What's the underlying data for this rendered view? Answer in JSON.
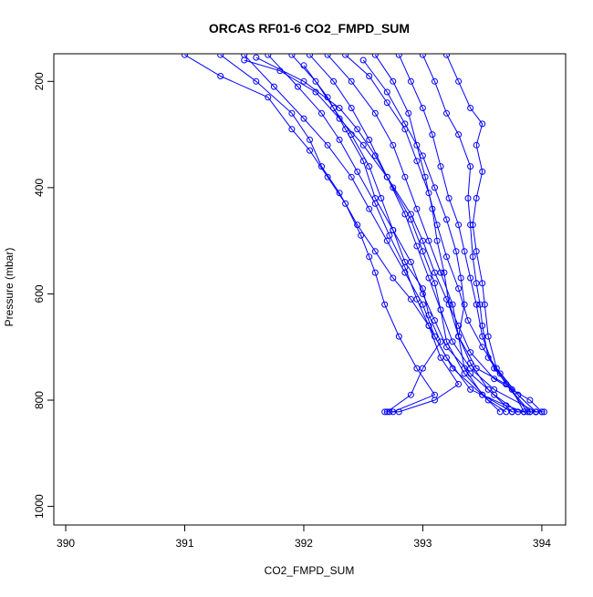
{
  "chart_data": {
    "type": "scatter",
    "title": "ORCAS RF01-6 CO2_FMPD_SUM",
    "xlabel": "CO2_FMPD_SUM",
    "ylabel": "Pressure (mbar)",
    "xlim": [
      389.9,
      394.2
    ],
    "ylim": [
      1035,
      148
    ],
    "y_reversed": true,
    "x_ticks": [
      "390",
      "391",
      "392",
      "393",
      "394"
    ],
    "y_ticks": [
      "200",
      "400",
      "600",
      "800",
      "1000"
    ],
    "grid": false,
    "legend": "none",
    "marker": "open-circle",
    "connected": true,
    "color": "#0000ff",
    "series": [
      {
        "values": [
          [
            391.0,
            150
          ],
          [
            391.3,
            190
          ],
          [
            391.7,
            230
          ],
          [
            391.9,
            290
          ],
          [
            392.05,
            330
          ],
          [
            392.2,
            380
          ],
          [
            392.35,
            430
          ],
          [
            392.48,
            490
          ],
          [
            392.55,
            530
          ],
          [
            392.6,
            560
          ],
          [
            392.68,
            620
          ],
          [
            392.8,
            680
          ],
          [
            392.95,
            740
          ],
          [
            393.1,
            790
          ],
          [
            392.75,
            822
          ],
          [
            392.68,
            822
          ]
        ]
      },
      {
        "values": [
          [
            391.3,
            150
          ],
          [
            391.6,
            200
          ],
          [
            391.9,
            260
          ],
          [
            392.05,
            310
          ],
          [
            392.15,
            360
          ],
          [
            392.3,
            410
          ],
          [
            392.45,
            470
          ],
          [
            392.6,
            520
          ],
          [
            392.75,
            570
          ],
          [
            392.9,
            610
          ],
          [
            393.05,
            660
          ],
          [
            393.2,
            720
          ],
          [
            393.4,
            780
          ],
          [
            393.7,
            810
          ],
          [
            393.85,
            822
          ],
          [
            393.95,
            822
          ]
        ]
      },
      {
        "values": [
          [
            391.5,
            150
          ],
          [
            391.75,
            210
          ],
          [
            392.0,
            270
          ],
          [
            392.2,
            320
          ],
          [
            392.4,
            380
          ],
          [
            392.55,
            440
          ],
          [
            392.7,
            500
          ],
          [
            392.85,
            560
          ],
          [
            393.0,
            620
          ],
          [
            393.1,
            680
          ],
          [
            393.25,
            740
          ],
          [
            393.5,
            790
          ],
          [
            393.75,
            822
          ],
          [
            394.0,
            822
          ]
        ]
      },
      {
        "values": [
          [
            391.7,
            150
          ],
          [
            391.95,
            210
          ],
          [
            392.15,
            260
          ],
          [
            392.3,
            310
          ],
          [
            392.45,
            370
          ],
          [
            392.6,
            430
          ],
          [
            392.72,
            490
          ],
          [
            392.85,
            550
          ],
          [
            392.95,
            610
          ],
          [
            393.05,
            660
          ],
          [
            393.15,
            720
          ],
          [
            393.3,
            770
          ],
          [
            393.1,
            800
          ],
          [
            392.8,
            822
          ],
          [
            392.72,
            822
          ]
        ]
      },
      {
        "values": [
          [
            391.9,
            150
          ],
          [
            392.1,
            200
          ],
          [
            392.25,
            250
          ],
          [
            392.4,
            300
          ],
          [
            392.55,
            360
          ],
          [
            392.65,
            420
          ],
          [
            392.75,
            480
          ],
          [
            392.9,
            540
          ],
          [
            393.0,
            600
          ],
          [
            393.1,
            650
          ],
          [
            393.2,
            700
          ],
          [
            393.4,
            750
          ],
          [
            393.6,
            790
          ],
          [
            393.8,
            822
          ],
          [
            393.9,
            822
          ]
        ]
      },
      {
        "values": [
          [
            392.05,
            150
          ],
          [
            392.25,
            200
          ],
          [
            392.4,
            250
          ],
          [
            392.55,
            310
          ],
          [
            392.7,
            380
          ],
          [
            392.85,
            450
          ],
          [
            392.95,
            510
          ],
          [
            393.05,
            570
          ],
          [
            393.15,
            630
          ],
          [
            393.25,
            690
          ],
          [
            393.4,
            740
          ],
          [
            393.6,
            780
          ],
          [
            393.95,
            822
          ],
          [
            394.02,
            822
          ]
        ]
      },
      {
        "values": [
          [
            392.2,
            150
          ],
          [
            392.4,
            200
          ],
          [
            392.6,
            260
          ],
          [
            392.75,
            320
          ],
          [
            392.85,
            380
          ],
          [
            392.95,
            440
          ],
          [
            393.05,
            500
          ],
          [
            393.15,
            560
          ],
          [
            393.25,
            620
          ],
          [
            393.3,
            680
          ],
          [
            393.45,
            740
          ],
          [
            393.7,
            770
          ],
          [
            393.88,
            822
          ]
        ]
      },
      {
        "values": [
          [
            392.35,
            150
          ],
          [
            392.55,
            190
          ],
          [
            392.7,
            240
          ],
          [
            392.85,
            290
          ],
          [
            392.95,
            350
          ],
          [
            393.05,
            410
          ],
          [
            393.12,
            470
          ],
          [
            393.2,
            530
          ],
          [
            393.3,
            590
          ],
          [
            393.38,
            650
          ],
          [
            393.5,
            700
          ],
          [
            393.65,
            750
          ],
          [
            393.8,
            790
          ],
          [
            393.95,
            822
          ]
        ]
      },
      {
        "values": [
          [
            392.6,
            150
          ],
          [
            392.75,
            200
          ],
          [
            392.88,
            260
          ],
          [
            392.95,
            320
          ],
          [
            393.02,
            380
          ],
          [
            393.08,
            440
          ],
          [
            393.12,
            500
          ],
          [
            393.18,
            560
          ],
          [
            393.22,
            620
          ],
          [
            393.3,
            680
          ],
          [
            393.4,
            730
          ],
          [
            393.55,
            780
          ],
          [
            393.75,
            822
          ]
        ]
      },
      {
        "values": [
          [
            392.8,
            150
          ],
          [
            392.9,
            200
          ],
          [
            393.0,
            250
          ],
          [
            393.08,
            300
          ],
          [
            393.15,
            360
          ],
          [
            393.22,
            420
          ],
          [
            393.3,
            470
          ],
          [
            393.35,
            520
          ],
          [
            393.4,
            570
          ],
          [
            393.45,
            620
          ],
          [
            393.5,
            680
          ],
          [
            393.6,
            740
          ],
          [
            393.75,
            780
          ],
          [
            393.85,
            822
          ]
        ]
      },
      {
        "values": [
          [
            393.0,
            150
          ],
          [
            393.1,
            200
          ],
          [
            393.2,
            260
          ],
          [
            393.3,
            300
          ],
          [
            393.4,
            360
          ],
          [
            393.38,
            420
          ],
          [
            393.4,
            470
          ],
          [
            393.42,
            530
          ],
          [
            393.45,
            580
          ],
          [
            393.48,
            620
          ],
          [
            393.5,
            660
          ],
          [
            393.55,
            720
          ],
          [
            393.7,
            770
          ],
          [
            393.9,
            822
          ]
        ]
      },
      {
        "values": [
          [
            393.2,
            150
          ],
          [
            393.3,
            200
          ],
          [
            393.4,
            250
          ],
          [
            393.5,
            280
          ],
          [
            393.45,
            320
          ],
          [
            393.5,
            370
          ],
          [
            393.45,
            420
          ],
          [
            393.42,
            470
          ],
          [
            393.45,
            520
          ],
          [
            393.5,
            580
          ],
          [
            393.52,
            620
          ],
          [
            393.55,
            680
          ],
          [
            393.62,
            740
          ],
          [
            393.8,
            790
          ],
          [
            393.95,
            822
          ]
        ]
      },
      {
        "values": [
          [
            391.5,
            160
          ],
          [
            391.8,
            180
          ],
          [
            392.1,
            220
          ],
          [
            392.3,
            270
          ],
          [
            392.5,
            320
          ],
          [
            392.7,
            380
          ],
          [
            392.9,
            450
          ],
          [
            393.0,
            500
          ],
          [
            393.1,
            560
          ],
          [
            393.2,
            610
          ],
          [
            393.3,
            660
          ],
          [
            393.4,
            710
          ],
          [
            393.6,
            760
          ],
          [
            393.9,
            800
          ],
          [
            394.0,
            822
          ]
        ]
      },
      {
        "values": [
          [
            392.0,
            170
          ],
          [
            392.2,
            230
          ],
          [
            392.35,
            290
          ],
          [
            392.5,
            350
          ],
          [
            392.6,
            420
          ],
          [
            392.75,
            480
          ],
          [
            392.85,
            540
          ],
          [
            393.0,
            590
          ],
          [
            393.05,
            640
          ],
          [
            393.15,
            690
          ],
          [
            393.0,
            740
          ],
          [
            392.9,
            790
          ],
          [
            392.7,
            822
          ]
        ]
      },
      {
        "values": [
          [
            391.6,
            155
          ],
          [
            392.0,
            200
          ],
          [
            392.3,
            250
          ],
          [
            392.45,
            290
          ],
          [
            392.6,
            340
          ],
          [
            392.75,
            400
          ],
          [
            392.9,
            460
          ],
          [
            393.0,
            520
          ],
          [
            393.1,
            580
          ],
          [
            393.15,
            630
          ],
          [
            393.2,
            690
          ],
          [
            393.35,
            750
          ],
          [
            393.55,
            800
          ],
          [
            393.7,
            822
          ]
        ]
      },
      {
        "values": [
          [
            392.5,
            160
          ],
          [
            392.7,
            220
          ],
          [
            392.85,
            280
          ],
          [
            393.0,
            340
          ],
          [
            393.1,
            400
          ],
          [
            393.2,
            460
          ],
          [
            393.28,
            520
          ],
          [
            393.32,
            570
          ],
          [
            393.35,
            620
          ],
          [
            393.3,
            680
          ],
          [
            393.35,
            740
          ],
          [
            393.5,
            790
          ],
          [
            393.65,
            822
          ]
        ]
      }
    ]
  }
}
